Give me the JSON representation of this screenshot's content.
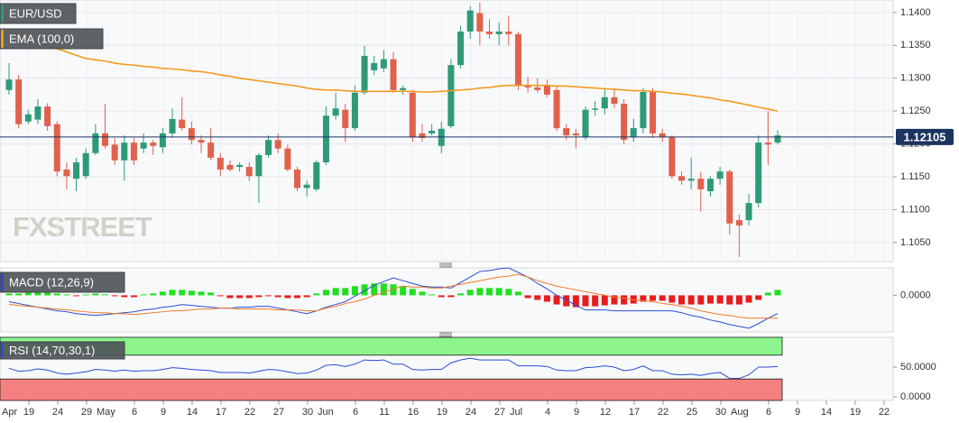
{
  "chart_data": {
    "type": "candlestick",
    "title": "EUR/USD",
    "watermark": "FXSTREET",
    "up_color": "#2e9a78",
    "down_color": "#e0614c",
    "ylim": [
      1.1021,
      1.1419
    ],
    "yticks": [
      {
        "value": 1.105,
        "label": "1.1050"
      },
      {
        "value": 1.11,
        "label": "1.1100"
      },
      {
        "value": 1.115,
        "label": "1.1150"
      },
      {
        "value": 1.12,
        "label": "1.1200"
      },
      {
        "value": 1.125,
        "label": "1.1250"
      },
      {
        "value": 1.13,
        "label": "1.1300"
      },
      {
        "value": 1.135,
        "label": "1.1350"
      },
      {
        "value": 1.14,
        "label": "1.1400"
      }
    ],
    "grid": true,
    "last_price": 1.12105,
    "last_price_color": "#1c3461",
    "xticks": [
      "Apr",
      "19",
      "24",
      "29",
      "May",
      "6",
      "9",
      "14",
      "17",
      "22",
      "27",
      "30",
      "Jun",
      "6",
      "11",
      "16",
      "19",
      "24",
      "27",
      "Jul",
      "4",
      "9",
      "12",
      "17",
      "22",
      "25",
      "30",
      "Aug",
      "6",
      "9",
      "14",
      "19",
      "22"
    ],
    "candles": [
      [
        1.1282,
        1.1323,
        1.1275,
        1.1298
      ],
      [
        1.1298,
        1.1305,
        1.1224,
        1.123
      ],
      [
        1.1234,
        1.1252,
        1.123,
        1.1245
      ],
      [
        1.1237,
        1.1268,
        1.123,
        1.1257
      ],
      [
        1.1257,
        1.1262,
        1.122,
        1.1227
      ],
      [
        1.123,
        1.1234,
        1.1151,
        1.1158
      ],
      [
        1.1161,
        1.1172,
        1.1131,
        1.1151
      ],
      [
        1.1147,
        1.1179,
        1.1128,
        1.1172
      ],
      [
        1.1151,
        1.1193,
        1.1147,
        1.1186
      ],
      [
        1.1186,
        1.123,
        1.1183,
        1.1216
      ],
      [
        1.1216,
        1.1261,
        1.1193,
        1.1197
      ],
      [
        1.1199,
        1.1209,
        1.1168,
        1.1175
      ],
      [
        1.1175,
        1.1213,
        1.1144,
        1.1202
      ],
      [
        1.1202,
        1.1209,
        1.1168,
        1.1175
      ],
      [
        1.1193,
        1.1216,
        1.1186,
        1.1202
      ],
      [
        1.1202,
        1.1206,
        1.1183,
        1.1197
      ],
      [
        1.1195,
        1.1224,
        1.1186,
        1.1216
      ],
      [
        1.1216,
        1.1254,
        1.1209,
        1.1238
      ],
      [
        1.1237,
        1.1271,
        1.122,
        1.1224
      ],
      [
        1.1224,
        1.1234,
        1.1199,
        1.1206
      ],
      [
        1.1206,
        1.1213,
        1.1186,
        1.1202
      ],
      [
        1.1202,
        1.1224,
        1.1175,
        1.1179
      ],
      [
        1.1179,
        1.1186,
        1.1151,
        1.1161
      ],
      [
        1.1168,
        1.1175,
        1.1158,
        1.1161
      ],
      [
        1.1165,
        1.1172,
        1.1158,
        1.1168
      ],
      [
        1.1165,
        1.1172,
        1.1144,
        1.1151
      ],
      [
        1.1151,
        1.1186,
        1.111,
        1.1183
      ],
      [
        1.1183,
        1.1213,
        1.1179,
        1.1206
      ],
      [
        1.1206,
        1.1216,
        1.1186,
        1.1193
      ],
      [
        1.1193,
        1.1199,
        1.1158,
        1.1161
      ],
      [
        1.1161,
        1.1165,
        1.1128,
        1.1133
      ],
      [
        1.1133,
        1.1144,
        1.112,
        1.1138
      ],
      [
        1.1131,
        1.1175,
        1.1128,
        1.1172
      ],
      [
        1.1172,
        1.1257,
        1.1168,
        1.1243
      ],
      [
        1.1243,
        1.1278,
        1.1237,
        1.1254
      ],
      [
        1.1252,
        1.1261,
        1.1203,
        1.1224
      ],
      [
        1.1224,
        1.1289,
        1.122,
        1.1278
      ],
      [
        1.1278,
        1.1349,
        1.1275,
        1.1334
      ],
      [
        1.1312,
        1.1334,
        1.1305,
        1.1323
      ],
      [
        1.1315,
        1.1343,
        1.1309,
        1.1329
      ],
      [
        1.1329,
        1.134,
        1.1278,
        1.1282
      ],
      [
        1.1282,
        1.1289,
        1.1275,
        1.1285
      ],
      [
        1.1278,
        1.1282,
        1.1203,
        1.121
      ],
      [
        1.1216,
        1.123,
        1.1203,
        1.1209
      ],
      [
        1.1216,
        1.123,
        1.1213,
        1.122
      ],
      [
        1.1197,
        1.1234,
        1.1186,
        1.1223
      ],
      [
        1.1227,
        1.1329,
        1.1224,
        1.132
      ],
      [
        1.132,
        1.138,
        1.1315,
        1.1371
      ],
      [
        1.1371,
        1.141,
        1.136,
        1.1403
      ],
      [
        1.1399,
        1.1415,
        1.135,
        1.1371
      ],
      [
        1.1371,
        1.139,
        1.136,
        1.1367
      ],
      [
        1.1367,
        1.1385,
        1.135,
        1.1371
      ],
      [
        1.1371,
        1.1395,
        1.135,
        1.1367
      ],
      [
        1.1367,
        1.1371,
        1.1282,
        1.1289
      ],
      [
        1.1289,
        1.1302,
        1.1278,
        1.1286
      ],
      [
        1.1286,
        1.13,
        1.1278,
        1.1282
      ],
      [
        1.1289,
        1.1298,
        1.1271,
        1.1275
      ],
      [
        1.1282,
        1.1289,
        1.122,
        1.1224
      ],
      [
        1.1224,
        1.123,
        1.1206,
        1.1213
      ],
      [
        1.1216,
        1.1223,
        1.1193,
        1.1213
      ],
      [
        1.121,
        1.1257,
        1.1206,
        1.1252
      ],
      [
        1.1252,
        1.1265,
        1.1243,
        1.1254
      ],
      [
        1.1254,
        1.1285,
        1.1245,
        1.1271
      ],
      [
        1.1271,
        1.1285,
        1.1254,
        1.1261
      ],
      [
        1.1261,
        1.1268,
        1.1199,
        1.1206
      ],
      [
        1.121,
        1.1238,
        1.1203,
        1.1224
      ],
      [
        1.1224,
        1.1285,
        1.1216,
        1.1279
      ],
      [
        1.1279,
        1.1285,
        1.1209,
        1.1216
      ],
      [
        1.1216,
        1.1223,
        1.1203,
        1.121
      ],
      [
        1.121,
        1.1213,
        1.1147,
        1.1151
      ],
      [
        1.1151,
        1.1158,
        1.1138,
        1.1144
      ],
      [
        1.1144,
        1.1179,
        1.1131,
        1.1147
      ],
      [
        1.1147,
        1.1158,
        1.1097,
        1.1131
      ],
      [
        1.1128,
        1.1151,
        1.112,
        1.1147
      ],
      [
        1.1147,
        1.1165,
        1.1138,
        1.1158
      ],
      [
        1.1158,
        1.1161,
        1.1062,
        1.1079
      ],
      [
        1.1084,
        1.1093,
        1.1028,
        1.1076
      ],
      [
        1.1084,
        1.1124,
        1.1076,
        1.111
      ],
      [
        1.111,
        1.1213,
        1.1103,
        1.1202
      ],
      [
        1.1202,
        1.125,
        1.1168,
        1.1199
      ],
      [
        1.1202,
        1.1221,
        1.1199,
        1.1213
      ]
    ],
    "overlays": [
      {
        "name": "EMA (100,0)",
        "color": "#f39a1e",
        "values": [
          1.1371,
          1.1366,
          1.136,
          1.1355,
          1.135,
          1.1345,
          1.134,
          1.1335,
          1.133,
          1.1328,
          1.1326,
          1.1323,
          1.1321,
          1.132,
          1.1318,
          1.1317,
          1.1315,
          1.1314,
          1.1313,
          1.1311,
          1.131,
          1.1308,
          1.1305,
          1.1303,
          1.13,
          1.1298,
          1.1296,
          1.1294,
          1.1292,
          1.129,
          1.1288,
          1.1285,
          1.1283,
          1.1282,
          1.1282,
          1.1281,
          1.128,
          1.128,
          1.128,
          1.128,
          1.128,
          1.128,
          1.128,
          1.1279,
          1.1279,
          1.128,
          1.1281,
          1.1282,
          1.1283,
          1.1285,
          1.1286,
          1.1288,
          1.1289,
          1.1289,
          1.1289,
          1.1289,
          1.1289,
          1.1288,
          1.1288,
          1.1287,
          1.1286,
          1.1285,
          1.1284,
          1.1283,
          1.1282,
          1.1281,
          1.1281,
          1.128,
          1.1279,
          1.1277,
          1.1276,
          1.1274,
          1.1272,
          1.127,
          1.1267,
          1.1265,
          1.1262,
          1.1259,
          1.1256,
          1.1253,
          1.125
        ]
      }
    ],
    "panels": [
      {
        "type": "macd",
        "name": "MACD (12,26,9)",
        "label_color": "#2a4bd7",
        "ylim": [
          -0.004,
          0.003
        ],
        "yticks": [
          {
            "value": 0,
            "label": "0.0000"
          }
        ],
        "up_color": "#1fe01f",
        "down_color": "#e81c1c",
        "histogram": [
          0.0002,
          0.0002,
          0.0003,
          0.0003,
          0.0003,
          0.0002,
          0.0001,
          -0.0001,
          0.0001,
          0.0002,
          0.0001,
          -0.0001,
          -0.0002,
          -0.0002,
          0.0001,
          0.0002,
          0.0004,
          0.0006,
          0.0006,
          0.0005,
          0.0004,
          0.0003,
          -0.0001,
          -0.0003,
          -0.0003,
          -0.0003,
          -0.0002,
          -0.0001,
          -0.0002,
          -0.0003,
          -0.0003,
          -0.0002,
          0.0002,
          0.0006,
          0.0008,
          0.0008,
          0.001,
          0.0012,
          0.0013,
          0.0013,
          0.0012,
          0.001,
          0.0007,
          0.0004,
          0.0001,
          -0.0002,
          -0.0002,
          0.0002,
          0.0006,
          0.0008,
          0.0008,
          0.0008,
          0.0007,
          0.0004,
          -0.0003,
          -0.0005,
          -0.0007,
          -0.001,
          -0.0012,
          -0.0013,
          -0.0012,
          -0.0012,
          -0.0011,
          -0.001,
          -0.001,
          -0.0009,
          -0.0007,
          -0.0006,
          -0.0006,
          -0.0008,
          -0.001,
          -0.001,
          -0.001,
          -0.0009,
          -0.0009,
          -0.001,
          -0.001,
          -0.0008,
          -0.0005,
          0.0003,
          0.0006
        ],
        "series": [
          {
            "color": "#2a4bd7",
            "values": [
              -0.0007,
              -0.0009,
              -0.0011,
              -0.0013,
              -0.0015,
              -0.0017,
              -0.0018,
              -0.002,
              -0.0021,
              -0.0022,
              -0.0021,
              -0.002,
              -0.0019,
              -0.0018,
              -0.0016,
              -0.0015,
              -0.0013,
              -0.0012,
              -0.001,
              -0.0011,
              -0.0012,
              -0.0013,
              -0.0014,
              -0.0014,
              -0.0013,
              -0.0013,
              -0.0012,
              -0.0012,
              -0.0014,
              -0.0016,
              -0.0018,
              -0.002,
              -0.0017,
              -0.0013,
              -0.001,
              -0.0007,
              -0.0001,
              0.0005,
              0.0011,
              0.0015,
              0.0019,
              0.0016,
              0.0013,
              0.001,
              0.0009,
              0.0009,
              0.0008,
              0.0014,
              0.002,
              0.0026,
              0.0027,
              0.0029,
              0.003,
              0.0025,
              0.002,
              0.0013,
              0.0007,
              0,
              -0.0005,
              -0.0011,
              -0.0016,
              -0.0016,
              -0.0016,
              -0.0017,
              -0.0017,
              -0.0017,
              -0.0017,
              -0.0017,
              -0.0017,
              -0.0017,
              -0.0019,
              -0.0022,
              -0.0024,
              -0.0027,
              -0.0029,
              -0.0032,
              -0.0034,
              -0.0036,
              -0.0031,
              -0.0025,
              -0.002
            ]
          },
          {
            "color": "#f07a28",
            "values": [
              -0.001,
              -0.0011,
              -0.0012,
              -0.0013,
              -0.0014,
              -0.0015,
              -0.0016,
              -0.0017,
              -0.0018,
              -0.0019,
              -0.0019,
              -0.002,
              -0.002,
              -0.0021,
              -0.002,
              -0.0019,
              -0.0018,
              -0.0017,
              -0.0017,
              -0.0016,
              -0.0015,
              -0.0015,
              -0.0014,
              -0.0014,
              -0.0015,
              -0.0015,
              -0.0015,
              -0.0015,
              -0.0016,
              -0.0016,
              -0.0016,
              -0.0017,
              -0.0017,
              -0.0014,
              -0.0012,
              -0.0009,
              -0.0007,
              -0.0004,
              0,
              0.0003,
              0.0007,
              0.001,
              0.0009,
              0.0009,
              0.0008,
              0.0008,
              0.001,
              0.0012,
              0.0014,
              0.0016,
              0.0018,
              0.002,
              0.0021,
              0.0023,
              0.002,
              0.0016,
              0.0013,
              0.001,
              0.0008,
              0.0006,
              0.0004,
              0.0002,
              0,
              -0.0002,
              -0.0003,
              -0.0005,
              -0.0006,
              -0.0007,
              -0.0009,
              -0.001,
              -0.0012,
              -0.0014,
              -0.0017,
              -0.0019,
              -0.0021,
              -0.0022,
              -0.0024,
              -0.0025,
              -0.0025,
              -0.0025,
              -0.0025
            ]
          }
        ]
      },
      {
        "type": "rsi",
        "name": "RSI (14,70,30,1)",
        "label_color": "#2a4bd7",
        "color": "#2a4bd7",
        "ylim": [
          0,
          100
        ],
        "yticks": [
          {
            "value": 50,
            "label": "50.0000"
          },
          {
            "value": 0,
            "label": "0.0000"
          }
        ],
        "bands": [
          {
            "from": 70,
            "to": 100,
            "color": "#8ef58e"
          },
          {
            "from": 0,
            "to": 30,
            "color": "#f58080"
          }
        ],
        "values": [
          48,
          43,
          44,
          47,
          45,
          40,
          38,
          40,
          42,
          46,
          45,
          43,
          45,
          43,
          44,
          44,
          46,
          49,
          48,
          46,
          45,
          44,
          41,
          41,
          41,
          40,
          43,
          46,
          45,
          42,
          39,
          40,
          45,
          53,
          54,
          51,
          55,
          62,
          61,
          62,
          55,
          55,
          46,
          45,
          46,
          46,
          57,
          62,
          65,
          62,
          62,
          62,
          62,
          52,
          52,
          52,
          51,
          45,
          44,
          44,
          49,
          50,
          52,
          50,
          44,
          46,
          52,
          44,
          44,
          38,
          37,
          38,
          36,
          39,
          41,
          31,
          31,
          37,
          50,
          50,
          51
        ]
      }
    ]
  }
}
